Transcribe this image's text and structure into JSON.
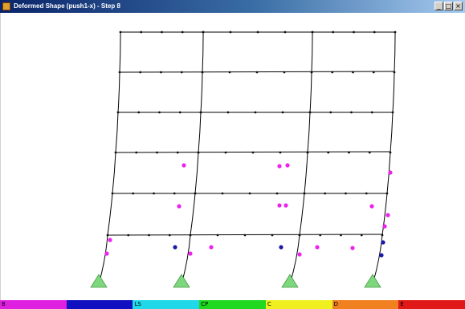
{
  "window": {
    "title": "Deformed Shape (push1-x) - Step 8",
    "minimize_glyph": "_",
    "restore_glyph": "□",
    "close_glyph": "×"
  },
  "colors": {
    "frame_line": "#000000",
    "node": "#111111",
    "hinge_magenta": "#ee22ee",
    "hinge_blue": "#1a1aa8",
    "support": "#7dd87d"
  },
  "icons": {
    "app": "app-icon",
    "support": "fixed-support-icon"
  },
  "legend": {
    "segments": [
      {
        "label": "B",
        "color": "#e020e0"
      },
      {
        "label": "",
        "color": "#1010c0"
      },
      {
        "label": "LS",
        "color": "#20d8e8"
      },
      {
        "label": "CP",
        "color": "#20d820"
      },
      {
        "label": "C",
        "color": "#f0f020"
      },
      {
        "label": "D",
        "color": "#f08020"
      },
      {
        "label": "E",
        "color": "#e01818"
      }
    ]
  }
}
